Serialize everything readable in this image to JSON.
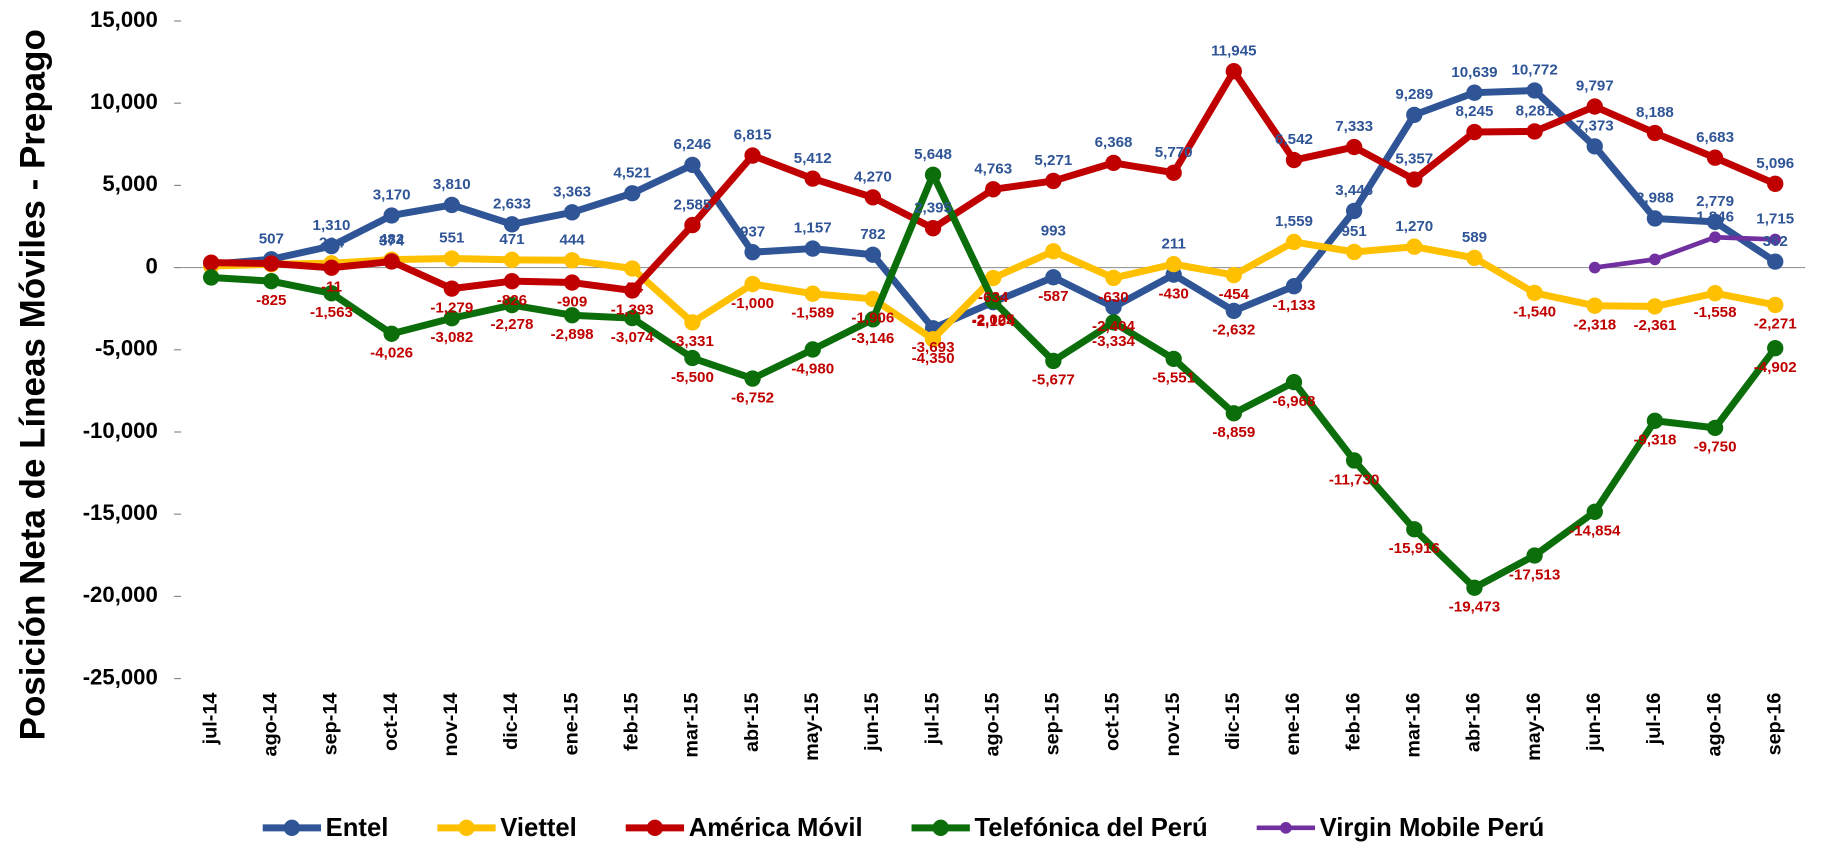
{
  "chart_data": {
    "type": "line",
    "y_label": "Posición Neta de Líneas Móviles - Prepago",
    "categories": [
      "jul-14",
      "ago-14",
      "sep-14",
      "oct-14",
      "nov-14",
      "dic-14",
      "ene-15",
      "feb-15",
      "mar-15",
      "abr-15",
      "may-15",
      "jun-15",
      "jul-15",
      "ago-15",
      "sep-15",
      "oct-15",
      "nov-15",
      "dic-15",
      "ene-16",
      "feb-16",
      "mar-16",
      "abr-16",
      "may-16",
      "jun-16",
      "jul-16",
      "ago-16",
      "sep-16"
    ],
    "series": [
      {
        "name": "Entel",
        "color": "#2f5597",
        "values": [
          200,
          507,
          1310,
          3170,
          3810,
          2633,
          3363,
          4521,
          6246,
          937,
          1157,
          782,
          -3693,
          -2104,
          -587,
          -2404,
          -430,
          -2632,
          -1133,
          3446,
          9289,
          10639,
          10772,
          7373,
          2988,
          2779,
          362
        ],
        "value_labels": [
          null,
          "507",
          "1,310",
          "3,170",
          "3,810",
          "2,633",
          "3,363",
          "4,521",
          "6,246",
          "937",
          "1,157",
          "782",
          "-3,693",
          "-2,104",
          "-587",
          "-2,404",
          "-430",
          "-2,632",
          "-1,133",
          "3,446",
          "9,289",
          "10,639",
          "10,772",
          "7,373",
          "2,988",
          "2,779",
          "362"
        ]
      },
      {
        "name": "Viettel",
        "color": "#ffc000",
        "values": [
          100,
          200,
          264,
          482,
          551,
          471,
          444,
          -54,
          -3331,
          -1000,
          -1589,
          -1906,
          -4350,
          -634,
          993,
          -630,
          211,
          -454,
          1559,
          951,
          1270,
          589,
          -1540,
          -2318,
          -2361,
          -1558,
          -2271
        ],
        "value_labels": [
          null,
          null,
          "264",
          "482",
          "551",
          "471",
          "444",
          "-54",
          "-3,331",
          "-1,000",
          "-1,589",
          "-1,906",
          "-4,350",
          "-634",
          "993",
          "-630",
          "211",
          "-454",
          "1,559",
          "951",
          "1,270",
          "589",
          "-1,540",
          "-2,318",
          "-2,361",
          "-1,558",
          "-2,271"
        ]
      },
      {
        "name": "América Móvil",
        "color": "#c00000",
        "values": [
          300,
          250,
          -11,
          374,
          -1279,
          -826,
          -909,
          -1393,
          2585,
          6815,
          5412,
          4270,
          2395,
          4763,
          5271,
          6368,
          5770,
          11945,
          6542,
          7333,
          5357,
          8245,
          8281,
          9797,
          8188,
          6683,
          5096
        ],
        "value_labels": [
          null,
          null,
          "-11",
          "374",
          "-1,279",
          "-826",
          "-909",
          "-1,393",
          "2,585",
          "6,815",
          "5,412",
          "4,270",
          "2,395",
          "4,763",
          "5,271",
          "6,368",
          "5,770",
          "11,945",
          "6,542",
          "7,333",
          "5,357",
          "8,245",
          "8,281",
          "9,797",
          "8,188",
          "6,683",
          "5,096"
        ]
      },
      {
        "name": "Telefónica del Perú",
        "color": "#0b6e0b",
        "values": [
          -600,
          -825,
          -1563,
          -4026,
          -3082,
          -2278,
          -2898,
          -3074,
          -5500,
          -6752,
          -4980,
          -3146,
          5648,
          -2025,
          -5677,
          -3334,
          -5551,
          -8859,
          -6968,
          -11730,
          -15916,
          -19473,
          -17513,
          -14854,
          -9318,
          -9750,
          -4902
        ],
        "value_labels": [
          null,
          "-825",
          "-1,563",
          "-4,026",
          "-3,082",
          "-2,278",
          "-2,898",
          "-3,074",
          "-5,500",
          "-6,752",
          "-4,980",
          "-3,146",
          "5,648",
          "-2,025",
          "-5,677",
          "-3,334",
          "-5,551",
          "-8,859",
          "-6,968",
          "-11,730",
          "-15,916",
          "-19,473",
          "-17,513",
          "-14,854",
          "-9,318",
          "-9,750",
          "-4,902"
        ]
      },
      {
        "name": "Virgin Mobile Perú",
        "color": "#7030a0",
        "values": [
          null,
          null,
          null,
          null,
          null,
          null,
          null,
          null,
          null,
          null,
          null,
          null,
          null,
          null,
          null,
          null,
          null,
          null,
          null,
          null,
          null,
          null,
          null,
          0,
          500,
          1846,
          1715
        ],
        "value_labels": [
          null,
          null,
          null,
          null,
          null,
          null,
          null,
          null,
          null,
          null,
          null,
          null,
          null,
          null,
          null,
          null,
          null,
          null,
          null,
          null,
          null,
          null,
          null,
          null,
          null,
          "1,846",
          "1,715"
        ]
      }
    ],
    "ylim": [
      -25000,
      15000
    ],
    "yticks": [
      {
        "value": -25000,
        "label": "-25,000"
      },
      {
        "value": -20000,
        "label": "-20,000"
      },
      {
        "value": -15000,
        "label": "-15,000"
      },
      {
        "value": -10000,
        "label": "-10,000"
      },
      {
        "value": -5000,
        "label": "-5,000"
      },
      0,
      {
        "value": 5000,
        "label": "5,000"
      },
      {
        "value": 10000,
        "label": "10,000"
      },
      {
        "value": 15000,
        "label": "15,000"
      }
    ],
    "legend": "bottom"
  }
}
